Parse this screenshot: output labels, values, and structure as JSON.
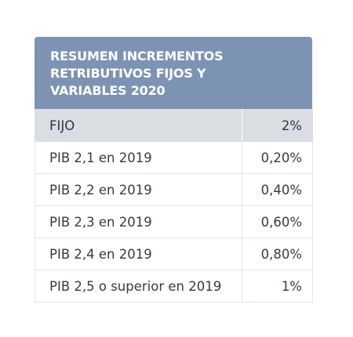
{
  "table": {
    "title": "RESUMEN INCREMENTOS\nRETRIBUTIVOS FIJOS Y\nVARIABLES 2020",
    "header_row": {
      "label": "FIJO",
      "value": "2%"
    },
    "rows": [
      {
        "label": "PIB 2,1 en 2019",
        "value": "0,20%"
      },
      {
        "label": "PIB 2,2 en 2019",
        "value": "0,40%"
      },
      {
        "label": "PIB 2,3 en 2019",
        "value": "0,60%"
      },
      {
        "label": "PIB 2,4 en 2019",
        "value": "0,80%"
      },
      {
        "label": "PIB 2,5 o superior en 2019",
        "value": "1%"
      }
    ]
  },
  "colors": {
    "header_background": "#7d93b3",
    "header_text": "#ffffff",
    "fijo_row_background": "#dadde2",
    "border": "#dfe6e8",
    "body_text": "#333b44"
  }
}
